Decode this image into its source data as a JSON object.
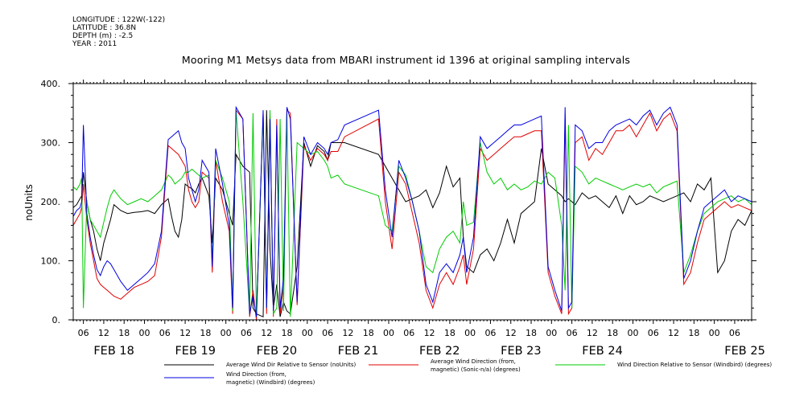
{
  "header": {
    "meta_lines": [
      "LONGITUDE : 122W(-122)",
      "LATITUDE : 36.8N",
      "DEPTH (m) : -2.5",
      "YEAR : 2011"
    ],
    "title": "Mooring M1 Metsys data from MBARI instrument id 1396 at original sampling intervals"
  },
  "chart_data": {
    "type": "line",
    "title": "Mooring M1 Metsys data from MBARI instrument id 1396 at original sampling intervals",
    "ylabel": "noUnits",
    "xlabel": "",
    "ylim": [
      0,
      400
    ],
    "yticks": [
      0,
      100,
      200,
      300,
      400
    ],
    "ytick_labels": [
      "0.",
      "100.",
      "200.",
      "300.",
      "400."
    ],
    "xlim_hours": [
      0,
      200
    ],
    "x_hour_tick_labels": [
      "06",
      "12",
      "18",
      "00",
      "06",
      "12",
      "18",
      "00",
      "06",
      "12",
      "18",
      "00",
      "06",
      "12",
      "18",
      "00",
      "06",
      "12",
      "18",
      "00",
      "06",
      "12",
      "18",
      "00",
      "06",
      "12",
      "18",
      "00",
      "06",
      "12",
      "18",
      "00",
      "06"
    ],
    "x_date_labels": [
      "FEB 18",
      "FEB 19",
      "FEB 20",
      "FEB 21",
      "FEB 22",
      "FEB 23",
      "FEB 24",
      "FEB 25"
    ],
    "grid": false,
    "legend_position": "bottom",
    "series": [
      {
        "name": "Average Wind Dir Relative to Sensor (noUnits)",
        "color": "#000000",
        "x": [
          0,
          1,
          2,
          2.5,
          3,
          4,
          5,
          6,
          7,
          8,
          9,
          10,
          11,
          12,
          14,
          16,
          18,
          20,
          22,
          24,
          26,
          28,
          29,
          30,
          31,
          32,
          33,
          34,
          35,
          36,
          37,
          38,
          40,
          41,
          42,
          44,
          46,
          47,
          48,
          50,
          52,
          53,
          54,
          56,
          57,
          58,
          59,
          60,
          61,
          62,
          63,
          64,
          66,
          68,
          70,
          72,
          74,
          75,
          76,
          78,
          80,
          90,
          92,
          94,
          96,
          98,
          100,
          102,
          104,
          106,
          108,
          110,
          112,
          114,
          115,
          116,
          118,
          120,
          122,
          124,
          126,
          128,
          130,
          132,
          134,
          136,
          138,
          140,
          142,
          144,
          145,
          146,
          147,
          148,
          150,
          152,
          154,
          156,
          158,
          160,
          162,
          164,
          166,
          168,
          170,
          172,
          174,
          176,
          178,
          180,
          182,
          184,
          186,
          188,
          190,
          192,
          194,
          196,
          198,
          200
        ],
        "y": [
          190,
          195,
          205,
          210,
          250,
          200,
          170,
          150,
          120,
          100,
          130,
          150,
          170,
          195,
          185,
          180,
          182,
          183,
          185,
          180,
          195,
          205,
          175,
          150,
          140,
          170,
          230,
          225,
          222,
          215,
          230,
          240,
          210,
          130,
          240,
          220,
          180,
          160,
          280,
          260,
          250,
          20,
          10,
          5,
          355,
          120,
          20,
          60,
          5,
          30,
          15,
          10,
          90,
          300,
          260,
          295,
          285,
          270,
          300,
          300,
          300,
          280,
          260,
          240,
          220,
          200,
          205,
          210,
          220,
          190,
          215,
          260,
          225,
          240,
          140,
          90,
          80,
          110,
          120,
          100,
          130,
          170,
          130,
          180,
          190,
          200,
          290,
          230,
          220,
          210,
          200,
          205,
          200,
          195,
          215,
          205,
          210,
          200,
          190,
          210,
          180,
          210,
          195,
          200,
          210,
          205,
          200,
          205,
          210,
          215,
          200,
          230,
          220,
          240,
          80,
          100,
          150,
          170,
          160,
          185
        ]
      },
      {
        "name": "Average Wind Direction (from, magnetic) (Sonic-n/a) (degrees)",
        "color": "#e00000",
        "x": [
          0,
          1,
          2,
          2.5,
          3,
          4,
          5,
          6,
          7,
          8,
          9,
          10,
          11,
          12,
          14,
          16,
          18,
          20,
          22,
          24,
          26,
          28,
          29,
          30,
          31,
          32,
          33,
          34,
          35,
          36,
          37,
          38,
          40,
          41,
          42,
          44,
          46,
          47,
          48,
          50,
          52,
          53,
          54,
          56,
          57,
          58,
          59,
          60,
          61,
          62,
          63,
          64,
          66,
          68,
          70,
          72,
          74,
          75,
          76,
          78,
          80,
          90,
          92,
          94,
          96,
          98,
          100,
          102,
          104,
          106,
          108,
          110,
          112,
          114,
          115,
          116,
          118,
          120,
          122,
          124,
          126,
          128,
          130,
          132,
          134,
          136,
          138,
          140,
          142,
          144,
          145,
          146,
          147,
          148,
          150,
          152,
          154,
          156,
          158,
          160,
          162,
          164,
          166,
          168,
          170,
          172,
          174,
          176,
          178,
          180,
          182,
          184,
          186,
          188,
          190,
          192,
          194,
          196,
          198,
          200
        ],
        "y": [
          160,
          170,
          180,
          190,
          230,
          170,
          130,
          100,
          70,
          60,
          55,
          50,
          45,
          40,
          35,
          45,
          55,
          60,
          65,
          75,
          140,
          295,
          290,
          285,
          280,
          270,
          260,
          220,
          200,
          190,
          200,
          250,
          240,
          80,
          270,
          200,
          150,
          10,
          355,
          340,
          5,
          50,
          0,
          350,
          10,
          350,
          5,
          340,
          10,
          60,
          355,
          350,
          25,
          295,
          270,
          290,
          280,
          270,
          285,
          285,
          310,
          340,
          200,
          120,
          250,
          230,
          180,
          130,
          50,
          20,
          60,
          80,
          60,
          90,
          110,
          60,
          120,
          290,
          270,
          280,
          290,
          300,
          310,
          310,
          315,
          320,
          320,
          80,
          40,
          10,
          340,
          10,
          20,
          300,
          310,
          270,
          290,
          280,
          300,
          320,
          320,
          330,
          310,
          330,
          350,
          320,
          340,
          350,
          320,
          60,
          80,
          130,
          170,
          180,
          190,
          200,
          190,
          195,
          190,
          185
        ]
      },
      {
        "name": "Wind Direction Relative to Sensor (Windbird) (degrees)",
        "color": "#00cc00",
        "x": [
          0,
          1,
          2,
          2.5,
          3,
          4,
          5,
          6,
          7,
          8,
          9,
          10,
          11,
          12,
          14,
          16,
          18,
          20,
          22,
          24,
          26,
          28,
          29,
          30,
          31,
          32,
          33,
          34,
          35,
          36,
          37,
          38,
          40,
          41,
          42,
          44,
          46,
          47,
          48,
          50,
          52,
          53,
          54,
          56,
          57,
          58,
          59,
          60,
          61,
          62,
          63,
          64,
          66,
          68,
          70,
          72,
          74,
          75,
          76,
          78,
          80,
          90,
          92,
          94,
          96,
          98,
          100,
          102,
          104,
          106,
          108,
          110,
          112,
          114,
          115,
          116,
          118,
          120,
          122,
          124,
          126,
          128,
          130,
          132,
          134,
          136,
          138,
          140,
          142,
          144,
          145,
          146,
          147,
          148,
          150,
          152,
          154,
          156,
          158,
          160,
          162,
          164,
          166,
          168,
          170,
          172,
          174,
          176,
          178,
          180,
          182,
          184,
          186,
          188,
          190,
          192,
          194,
          196,
          198,
          200
        ],
        "y": [
          225,
          220,
          230,
          240,
          20,
          200,
          170,
          160,
          150,
          140,
          165,
          190,
          210,
          220,
          205,
          195,
          200,
          205,
          200,
          210,
          220,
          245,
          240,
          230,
          235,
          240,
          250,
          250,
          255,
          250,
          245,
          240,
          245,
          100,
          270,
          240,
          200,
          15,
          355,
          200,
          10,
          350,
          5,
          345,
          20,
          355,
          10,
          20,
          340,
          15,
          350,
          5,
          300,
          290,
          280,
          285,
          270,
          260,
          240,
          245,
          230,
          210,
          160,
          150,
          260,
          245,
          200,
          150,
          90,
          80,
          120,
          140,
          150,
          130,
          200,
          160,
          165,
          300,
          250,
          230,
          240,
          220,
          230,
          220,
          225,
          235,
          230,
          250,
          240,
          160,
          50,
          330,
          20,
          260,
          250,
          230,
          240,
          235,
          230,
          225,
          220,
          225,
          230,
          225,
          230,
          215,
          225,
          230,
          235,
          80,
          110,
          150,
          180,
          190,
          200,
          205,
          210,
          200,
          205,
          195
        ]
      },
      {
        "name": "Wind Direction (from, magnetic) (Windbird) (degrees)",
        "color": "#0000e0",
        "x": [
          0,
          1,
          2,
          2.5,
          3,
          4,
          5,
          6,
          7,
          8,
          9,
          10,
          11,
          12,
          14,
          16,
          18,
          20,
          22,
          24,
          26,
          28,
          29,
          30,
          31,
          32,
          33,
          34,
          35,
          36,
          37,
          38,
          40,
          41,
          42,
          44,
          46,
          47,
          48,
          50,
          52,
          53,
          54,
          56,
          57,
          58,
          59,
          60,
          61,
          62,
          63,
          64,
          66,
          68,
          70,
          72,
          74,
          75,
          76,
          78,
          80,
          90,
          92,
          94,
          96,
          98,
          100,
          102,
          104,
          106,
          108,
          110,
          112,
          114,
          115,
          116,
          118,
          120,
          122,
          124,
          126,
          128,
          130,
          132,
          134,
          136,
          138,
          140,
          142,
          144,
          145,
          146,
          147,
          148,
          150,
          152,
          154,
          156,
          158,
          160,
          162,
          164,
          166,
          168,
          170,
          172,
          174,
          176,
          178,
          180,
          182,
          184,
          186,
          188,
          190,
          192,
          194,
          196,
          198,
          200
        ],
        "y": [
          175,
          185,
          190,
          200,
          330,
          180,
          140,
          110,
          85,
          75,
          90,
          100,
          95,
          85,
          65,
          50,
          60,
          70,
          80,
          95,
          150,
          305,
          310,
          315,
          320,
          300,
          290,
          240,
          220,
          200,
          220,
          270,
          250,
          90,
          290,
          230,
          160,
          20,
          360,
          340,
          10,
          40,
          5,
          355,
          20,
          340,
          15,
          330,
          20,
          70,
          360,
          340,
          30,
          310,
          280,
          300,
          290,
          280,
          300,
          305,
          330,
          355,
          220,
          140,
          270,
          240,
          200,
          150,
          60,
          30,
          80,
          95,
          80,
          110,
          140,
          80,
          140,
          310,
          290,
          300,
          310,
          320,
          330,
          330,
          335,
          340,
          345,
          90,
          50,
          15,
          360,
          20,
          30,
          330,
          320,
          290,
          300,
          300,
          320,
          330,
          335,
          340,
          330,
          345,
          355,
          330,
          350,
          360,
          330,
          70,
          100,
          150,
          190,
          200,
          210,
          220,
          200,
          210,
          205,
          200
        ]
      }
    ]
  },
  "legend": [
    {
      "line1": "Average Wind Dir Relative to Sensor (noUnits)",
      "line2": "",
      "color": "#000000"
    },
    {
      "line1": "Average Wind Direction (from,",
      "line2": "magnetic) (Sonic-n/a) (degrees)",
      "color": "#e00000"
    },
    {
      "line1": "Wind Direction Relative to Sensor (Windbird) (degrees)",
      "line2": "",
      "color": "#00cc00"
    },
    {
      "line1": "Wind Direction (from,",
      "line2": "magnetic) (Windbird) (degrees)",
      "color": "#0000e0"
    }
  ]
}
